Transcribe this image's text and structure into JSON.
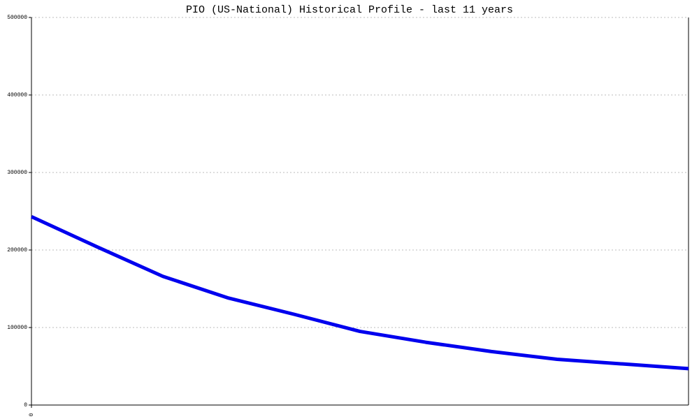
{
  "chart_data": {
    "type": "line",
    "title": "PIO (US-National) Historical Profile - last 11 years",
    "x": [
      0,
      1,
      2,
      3,
      4,
      5,
      6,
      7,
      8,
      9,
      10
    ],
    "values": [
      243000,
      204000,
      166000,
      138000,
      117000,
      95000,
      81000,
      69000,
      59000,
      53000,
      47000
    ],
    "color": "#0000ee",
    "xlim": [
      0,
      10
    ],
    "xticks": [
      0
    ],
    "ylim": [
      0,
      500000
    ],
    "yticks": [
      0,
      100000,
      200000,
      300000,
      400000,
      500000
    ],
    "grid": true
  }
}
